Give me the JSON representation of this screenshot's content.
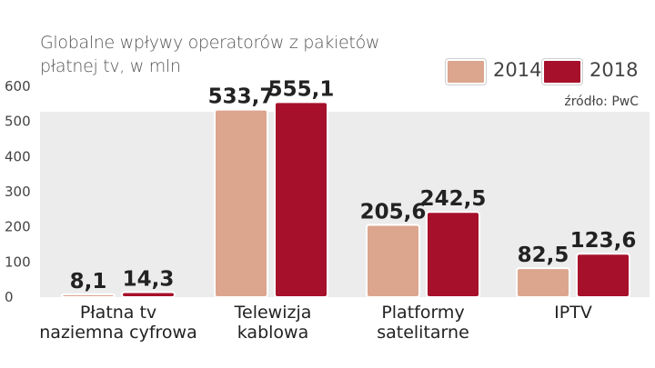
{
  "chart_data": {
    "type": "bar",
    "title_lines": [
      "Globalne wpływy operatorów z pakietów",
      "płatnej tv, w mln"
    ],
    "source": "źródło: PwC",
    "categories": [
      [
        "Płatna tv",
        "naziemna cyfrowa"
      ],
      [
        "Telewizja",
        "kablowa"
      ],
      [
        "Platformy",
        "satelitarne"
      ],
      [
        "IPTV"
      ]
    ],
    "series": [
      {
        "name": "2014",
        "color": "#dca58e",
        "values": [
          8.1,
          533.7,
          205.6,
          82.5
        ],
        "labels": [
          "8,1",
          "533,7",
          "205,6",
          "82,5"
        ]
      },
      {
        "name": "2018",
        "color": "#a6102a",
        "values": [
          14.3,
          555.1,
          242.5,
          123.6
        ],
        "labels": [
          "14,3",
          "555,1",
          "242,5",
          "123,6"
        ]
      }
    ],
    "yticks": [
      "0",
      "100",
      "200",
      "300",
      "400",
      "500",
      "600"
    ],
    "ylim": [
      0,
      600
    ],
    "grid": false,
    "legend": "top-right",
    "background_band": "#ececec"
  }
}
